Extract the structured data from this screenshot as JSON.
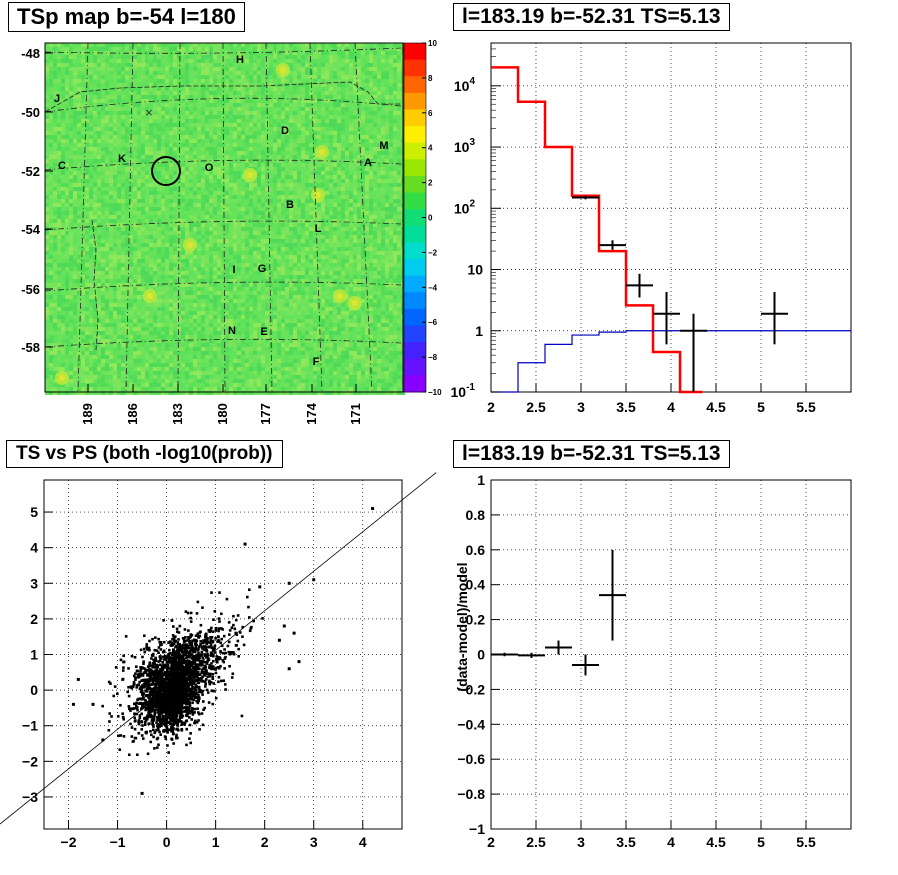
{
  "titles": {
    "map": "TSp map b=-54 l=180",
    "spectrum": "l=183.19 b=-52.31 TS=5.13",
    "scatter": "TS vs PS (both -log10(prob))",
    "residual": "l=183.19 b=-52.31 TS=5.13"
  },
  "chart_data": [
    {
      "type": "heatmap",
      "title": "TSp map b=-54 l=180",
      "x_ticks": [
        "189",
        "186",
        "183",
        "180",
        "177",
        "174",
        "171"
      ],
      "y_ticks": [
        "-48",
        "-50",
        "-52",
        "-54",
        "-56",
        "-58"
      ],
      "colorbar_ticks": [
        "10",
        "8",
        "6",
        "4",
        "2",
        "0",
        "−2",
        "−4",
        "−6",
        "−8",
        "−10"
      ],
      "colorbar_range": [
        -10,
        10
      ],
      "source_labels": [
        "H",
        "J",
        "D",
        "M",
        "C",
        "K",
        "O",
        "A",
        "B",
        "L",
        "I",
        "G",
        "N",
        "E",
        "F"
      ],
      "marker_glyph": "×"
    },
    {
      "type": "line",
      "title": "l=183.19 b=-52.31 TS=5.13",
      "log_y": true,
      "xlim": [
        2,
        6
      ],
      "ylim": [
        0.1,
        50000
      ],
      "x_ticks": [
        "2",
        "2.5",
        "3",
        "3.5",
        "4",
        "4.5",
        "5",
        "5.5"
      ],
      "y_ticks": [
        "10^4",
        "10^3",
        "10^2",
        "10",
        "1",
        "10^-1"
      ],
      "grid": true,
      "series": [
        {
          "color": "#ff0000",
          "steps": [
            [
              2.0,
              2.3,
              20000
            ],
            [
              2.3,
              2.6,
              5500
            ],
            [
              2.6,
              2.9,
              1000
            ],
            [
              2.9,
              3.2,
              160
            ],
            [
              3.2,
              3.5,
              20
            ],
            [
              3.5,
              3.8,
              2.6
            ],
            [
              3.8,
              4.1,
              0.45
            ],
            [
              4.1,
              4.35,
              0.1
            ]
          ]
        },
        {
          "color": "#0000c0",
          "steps": [
            [
              2.0,
              2.3,
              0.1
            ],
            [
              2.3,
              2.6,
              0.3
            ],
            [
              2.6,
              2.9,
              0.6
            ],
            [
              2.9,
              3.2,
              0.85
            ],
            [
              3.2,
              3.5,
              0.95
            ],
            [
              3.5,
              6.0,
              1.0
            ]
          ]
        }
      ],
      "points": [
        {
          "x": 3.05,
          "y": 150,
          "xerr": 0.15,
          "ylo": 140,
          "yhi": 160
        },
        {
          "x": 3.35,
          "y": 25,
          "xerr": 0.15,
          "ylo": 21,
          "yhi": 30
        },
        {
          "x": 3.65,
          "y": 5.5,
          "xerr": 0.15,
          "ylo": 3.5,
          "yhi": 8.5
        },
        {
          "x": 3.95,
          "y": 1.9,
          "xerr": 0.15,
          "ylo": 0.6,
          "yhi": 4.3
        },
        {
          "x": 4.25,
          "y": 1.0,
          "xerr": 0.15,
          "ylo": 0.1,
          "yhi": 1.9
        },
        {
          "x": 5.15,
          "y": 1.9,
          "xerr": 0.15,
          "ylo": 0.6,
          "yhi": 4.3
        }
      ]
    },
    {
      "type": "scatter",
      "title": "TS vs PS (both -log10(prob))",
      "xlim": [
        -2.5,
        4.8
      ],
      "ylim": [
        -3.9,
        5.9
      ],
      "x_ticks": [
        "−2",
        "−1",
        "0",
        "1",
        "2",
        "3",
        "4"
      ],
      "y_ticks": [
        "5",
        "4",
        "3",
        "2",
        "1",
        "0",
        "−1",
        "−2",
        "−3"
      ],
      "grid": true,
      "fit_line": {
        "slope": 1.05,
        "intercept": 0.1
      },
      "outliers": [
        [
          4.2,
          5.1
        ],
        [
          3.0,
          3.1
        ],
        [
          2.6,
          1.6
        ],
        [
          2.4,
          1.8
        ],
        [
          2.7,
          0.8
        ],
        [
          2.5,
          0.6
        ],
        [
          -1.8,
          0.3
        ],
        [
          -1.9,
          -0.4
        ],
        [
          -1.5,
          -0.4
        ],
        [
          -0.5,
          -2.9
        ],
        [
          1.6,
          4.1
        ],
        [
          2.5,
          3.0
        ],
        [
          2.3,
          1.4
        ],
        [
          -1.3,
          -1.4
        ],
        [
          1.9,
          2.9
        ]
      ]
    },
    {
      "type": "scatter",
      "title": "l=183.19 b=-52.31 TS=5.13",
      "ylabel": "(data-model)/model",
      "xlim": [
        2,
        6
      ],
      "ylim": [
        -1,
        1
      ],
      "x_ticks": [
        "2",
        "2.5",
        "3",
        "3.5",
        "4",
        "4.5",
        "5",
        "5.5"
      ],
      "y_ticks": [
        "1",
        "0.8",
        "0.6",
        "0.4",
        "0.2",
        "0",
        "−0.2",
        "−0.4",
        "−0.6",
        "−0.8",
        "−1"
      ],
      "grid": true,
      "points": [
        {
          "x": 2.15,
          "y": 0.0,
          "xerr": 0.15,
          "ylo": -0.01,
          "yhi": 0.01
        },
        {
          "x": 2.45,
          "y": -0.005,
          "xerr": 0.15,
          "ylo": -0.02,
          "yhi": 0.01
        },
        {
          "x": 2.75,
          "y": 0.04,
          "xerr": 0.15,
          "ylo": 0.0,
          "yhi": 0.08
        },
        {
          "x": 3.05,
          "y": -0.06,
          "xerr": 0.15,
          "ylo": -0.12,
          "yhi": 0.0
        },
        {
          "x": 3.35,
          "y": 0.34,
          "xerr": 0.15,
          "ylo": 0.08,
          "yhi": 0.6
        }
      ]
    }
  ]
}
